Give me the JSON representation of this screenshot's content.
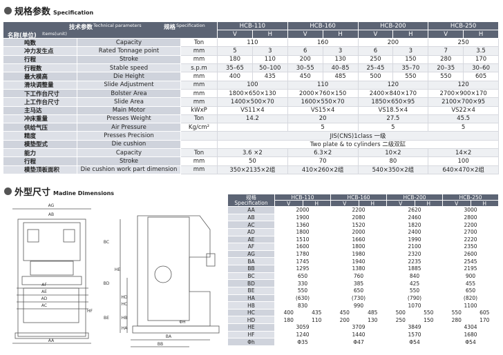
{
  "spec": {
    "title_cn": "规格参数",
    "title_en": "Specification",
    "header": {
      "tech_cn": "技术参数",
      "tech_en": "Technical parameters",
      "spec_cn": "规格",
      "spec_en": "Specification",
      "items_cn": "名称(单位)",
      "items_en": "Items(unit)"
    },
    "models": [
      "HCB-110",
      "HCB-160",
      "HCB-200",
      "HCB-250"
    ],
    "sub": [
      "V",
      "H"
    ],
    "rows": [
      {
        "cn": "吨数",
        "en": "Capacity",
        "unit": "Ton",
        "cells": [
          "110",
          "160",
          "200",
          "250"
        ]
      },
      {
        "cn": "冲力发生点",
        "en": "Rated Tonnage point",
        "unit": "mm",
        "cells": [
          [
            "5",
            "3"
          ],
          [
            "6",
            "3"
          ],
          [
            "6",
            "3"
          ],
          [
            "7",
            "3.5"
          ]
        ]
      },
      {
        "cn": "行程",
        "en": "Stroke",
        "unit": "mm",
        "cells": [
          [
            "180",
            "110"
          ],
          [
            "200",
            "130"
          ],
          [
            "250",
            "150"
          ],
          [
            "280",
            "170"
          ]
        ]
      },
      {
        "cn": "行程数",
        "en": "Stable speed",
        "unit": "s.p.m",
        "cells": [
          [
            "35–65",
            "50–100"
          ],
          [
            "30–55",
            "40–85"
          ],
          [
            "25–45",
            "35–70"
          ],
          [
            "20–35",
            "30–60"
          ]
        ]
      },
      {
        "cn": "最大模高",
        "en": "Die Height",
        "unit": "mm",
        "cells": [
          [
            "400",
            "435"
          ],
          [
            "450",
            "485"
          ],
          [
            "500",
            "550"
          ],
          [
            "550",
            "605"
          ]
        ]
      },
      {
        "cn": "滑块调整量",
        "en": "Slide Adjustment",
        "unit": "mm",
        "cells": [
          "100",
          "110",
          "120",
          "120"
        ]
      },
      {
        "cn": "下工作台尺寸",
        "en": "Bolster Area",
        "unit": "mm",
        "cells": [
          "1800×650×130",
          "2000×760×150",
          "2400×840×170",
          "2700×900×170"
        ]
      },
      {
        "cn": "上工作台尺寸",
        "en": "Slide Area",
        "unit": "mm",
        "cells": [
          "1400×500×70",
          "1600×550×70",
          "1850×650×95",
          "2100×700×95"
        ]
      },
      {
        "cn": "主马达",
        "en": "Main Motor",
        "unit": "kWxP",
        "cells": [
          "VS11×4",
          "VS15×4",
          "VS18.5×4",
          "VS22×4"
        ]
      },
      {
        "cn": "冲床重量",
        "en": "Presses Weight",
        "unit": "Ton",
        "cells": [
          "14.2",
          "20",
          "27.5",
          "45.5"
        ]
      },
      {
        "cn": "供给气压",
        "en": "Air Pressure",
        "unit": "Kg/cm²",
        "cells": [
          null,
          "5",
          "5",
          "5"
        ]
      },
      {
        "cn": "精度",
        "en": "Presses Precision",
        "unit": null,
        "cells": [
          "JIS(CNS)1class 一级"
        ]
      },
      {
        "cn": "模垫型式",
        "en": "Die cushion",
        "unit": null,
        "cells": [
          "Two plate & to cylinders 二级双缸"
        ]
      },
      {
        "cn": "能力",
        "en": "Capacity",
        "unit": "Ton",
        "cells": [
          "3.6 ×2",
          "6.3×2",
          "10×2",
          "14×2"
        ]
      },
      {
        "cn": "行程",
        "en": "Stroke",
        "unit": "mm",
        "cells": [
          "50",
          "70",
          "80",
          "100"
        ]
      },
      {
        "cn": "模垫顶板面积",
        "en": "Die cushion  work part dimension",
        "unit": "mm",
        "cells": [
          "350×2135×2组",
          "410×260×2组",
          "540×350×2组",
          "640×470×2组"
        ]
      }
    ]
  },
  "dimensions": {
    "title_cn": "外型尺寸",
    "title_en": "Madine Dimensions",
    "header": {
      "spec_cn": "规格",
      "spec_en": "Specification"
    },
    "models": [
      "HCB-110",
      "HCB-160",
      "HCB-200",
      "HCB-250"
    ],
    "sub": [
      "V",
      "H"
    ],
    "rows": [
      {
        "label": "AA",
        "cells": [
          "2000",
          "2200",
          "2620",
          "3000"
        ]
      },
      {
        "label": "AB",
        "cells": [
          "1900",
          "2080",
          "2460",
          "2800"
        ]
      },
      {
        "label": "AC",
        "cells": [
          "1360",
          "1520",
          "1820",
          "2200"
        ]
      },
      {
        "label": "AD",
        "cells": [
          "1800",
          "2000",
          "2400",
          "2700"
        ]
      },
      {
        "label": "AE",
        "cells": [
          "1510",
          "1660",
          "1990",
          "2220"
        ]
      },
      {
        "label": "AF",
        "cells": [
          "1600",
          "1800",
          "2100",
          "2350"
        ]
      },
      {
        "label": "AG",
        "cells": [
          "1780",
          "1980",
          "2320",
          "2600"
        ]
      },
      {
        "label": "BA",
        "cells": [
          "1745",
          "1940",
          "2235",
          "2545"
        ]
      },
      {
        "label": "BB",
        "cells": [
          "1295",
          "1380",
          "1885",
          "2195"
        ]
      },
      {
        "label": "BC",
        "cells": [
          "650",
          "760",
          "840",
          "900"
        ]
      },
      {
        "label": "BD",
        "cells": [
          "330",
          "385",
          "425",
          "455"
        ]
      },
      {
        "label": "BE",
        "cells": [
          "550",
          "650",
          "550",
          "650"
        ]
      },
      {
        "label": "HA",
        "cells": [
          "(630)",
          "(730)",
          "(790)",
          "(820)"
        ]
      },
      {
        "label": "HB",
        "cells": [
          "830",
          "990",
          "1070",
          "1100"
        ]
      },
      {
        "label": "HC",
        "cells": [
          [
            "400",
            "435"
          ],
          [
            "450",
            "485"
          ],
          [
            "500",
            "550"
          ],
          [
            "550",
            "605"
          ]
        ]
      },
      {
        "label": "HD",
        "cells": [
          [
            "180",
            "110"
          ],
          [
            "200",
            "130"
          ],
          [
            "250",
            "150"
          ],
          [
            "280",
            "170"
          ]
        ]
      },
      {
        "label": "HE",
        "cells": [
          "3059",
          "3709",
          "3849",
          "4304"
        ]
      },
      {
        "label": "HF",
        "cells": [
          "1240",
          "1440",
          "1570",
          "1680"
        ]
      },
      {
        "label": "Φh",
        "cells": [
          "Φ35",
          "Φ47",
          "Φ54",
          "Φ54"
        ]
      }
    ],
    "drawing_labels": [
      "AG",
      "AB",
      "AF",
      "AE",
      "AD",
      "AC",
      "AA",
      "HF",
      "HE",
      "HD",
      "HC",
      "HB",
      "HA",
      "ΦH",
      "BA",
      "BB",
      "BC",
      "BD",
      "BE"
    ]
  }
}
